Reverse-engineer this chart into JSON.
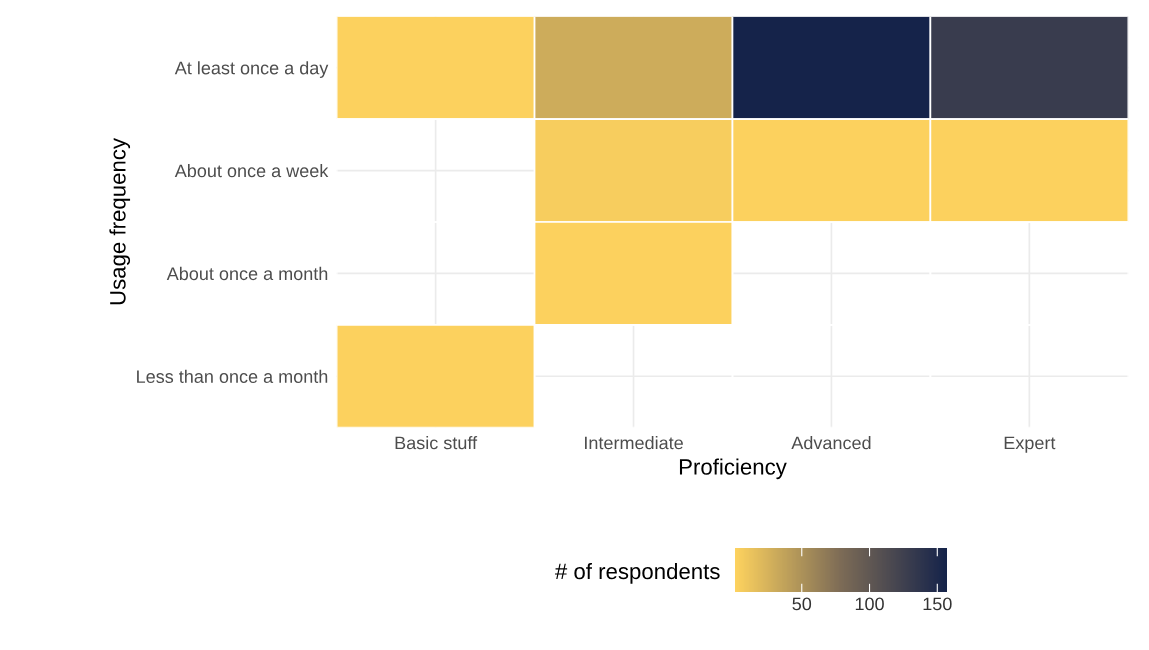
{
  "chart_data": {
    "type": "heatmap",
    "xlabel": "Proficiency",
    "ylabel": "Usage frequency",
    "clabel": "# of respondents",
    "categories": [
      "Basic stuff",
      "Intermediate",
      "Advanced",
      "Expert"
    ],
    "y_categories": [
      "At least once a day",
      "About once a week",
      "About once a month",
      "Less than once a month"
    ],
    "cells": [
      [
        2,
        30,
        157,
        130
      ],
      [
        null,
        5,
        2,
        2
      ],
      [
        null,
        2,
        null,
        null
      ],
      [
        2,
        null,
        null,
        null
      ]
    ],
    "clim": [
      1,
      157
    ],
    "cticks": [
      50,
      100,
      150
    ],
    "colors": [
      "#fdd25e",
      "#7c6b56",
      "#15234a"
    ],
    "grid": true
  }
}
